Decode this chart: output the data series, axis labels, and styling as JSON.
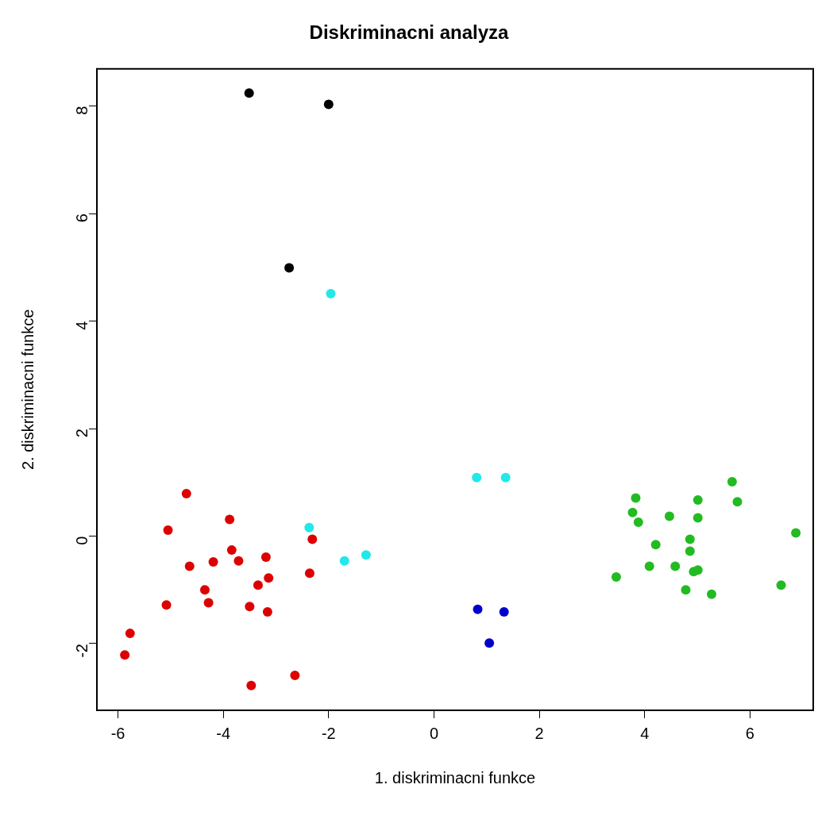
{
  "chart_data": {
    "type": "scatter",
    "title": "Diskriminacni analyza",
    "xlabel": "1. diskriminacni funkce",
    "ylabel": "2. diskriminacni funkce",
    "xlim": [
      -6.4,
      7.2
    ],
    "ylim": [
      -3.24,
      8.69
    ],
    "xticks": [
      -6,
      -4,
      -2,
      0,
      2,
      4,
      6
    ],
    "yticks": [
      -2,
      0,
      2,
      4,
      6,
      8
    ],
    "grid": false,
    "legend": false,
    "marker": "circle",
    "series": [
      {
        "color": "#000000",
        "x": [
          -3.51,
          -2.0,
          -2.75
        ],
        "values": [
          8.24,
          8.03,
          4.99
        ]
      },
      {
        "color": "#22e8e8",
        "x": [
          -1.96,
          -2.37,
          -1.7,
          -1.29,
          0.81,
          1.36
        ],
        "values": [
          4.51,
          0.16,
          -0.46,
          -0.35,
          1.09,
          1.09
        ]
      },
      {
        "color": "#dd0000",
        "x": [
          -4.7,
          -3.88,
          -5.05,
          -2.31,
          -3.84,
          -4.64,
          -4.19,
          -3.71,
          -3.19,
          -2.36,
          -3.14,
          -3.34,
          -4.35,
          -4.28,
          -5.08,
          -3.5,
          -3.16,
          -5.77,
          -5.87,
          -2.64,
          -3.47
        ],
        "values": [
          0.79,
          0.31,
          0.11,
          -0.06,
          -0.26,
          -0.56,
          -0.48,
          -0.46,
          -0.39,
          -0.69,
          -0.78,
          -0.91,
          -1.0,
          -1.24,
          -1.28,
          -1.31,
          -1.41,
          -1.81,
          -2.21,
          -2.59,
          -2.78
        ]
      },
      {
        "color": "#0000cc",
        "x": [
          0.83,
          1.33,
          1.05
        ],
        "values": [
          -1.36,
          -1.41,
          -1.99
        ]
      },
      {
        "color": "#22bb22",
        "x": [
          5.66,
          3.83,
          5.01,
          5.76,
          3.77,
          4.47,
          5.01,
          3.88,
          6.87,
          4.86,
          4.21,
          4.86,
          4.09,
          4.58,
          5.01,
          4.93,
          3.46,
          6.59,
          4.78,
          5.27
        ],
        "values": [
          1.01,
          0.71,
          0.67,
          0.64,
          0.44,
          0.37,
          0.34,
          0.26,
          0.06,
          -0.06,
          -0.16,
          -0.28,
          -0.56,
          -0.56,
          -0.63,
          -0.66,
          -0.76,
          -0.91,
          -1.0,
          -1.08
        ]
      }
    ]
  }
}
